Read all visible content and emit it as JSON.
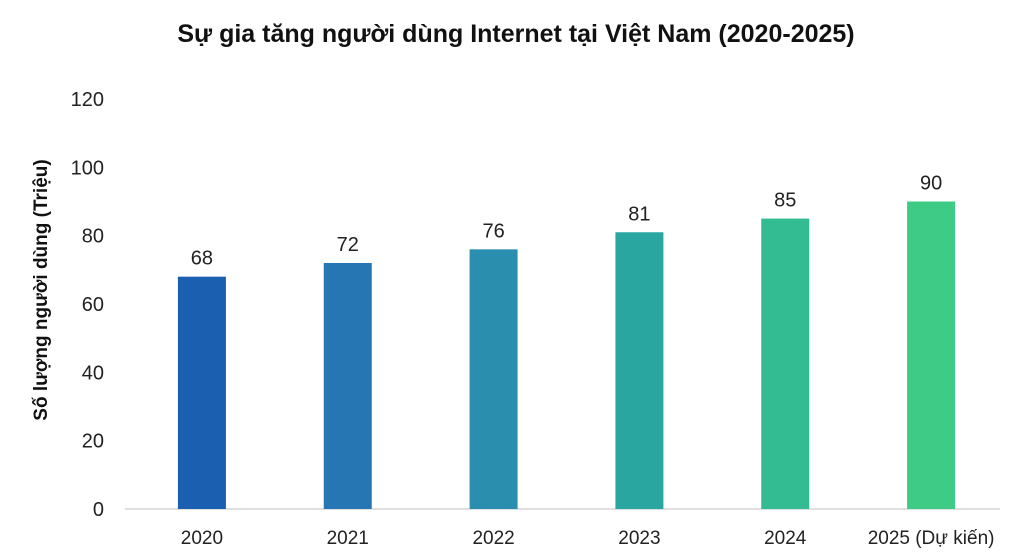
{
  "chart_data": {
    "type": "bar",
    "title": "Sự gia tăng người dùng Internet tại Việt Nam (2020-2025)",
    "xlabel": "",
    "ylabel": "Số lượng người dùng (Triệu)",
    "categories": [
      "2020",
      "2021",
      "2022",
      "2023",
      "2024",
      "2025 (Dự kiến)"
    ],
    "values": [
      68,
      72,
      76,
      81,
      85,
      90
    ],
    "data_labels": [
      "68",
      "72",
      "76",
      "81",
      "85",
      "90"
    ],
    "ylim": [
      0,
      120
    ],
    "yticks": [
      0,
      20,
      40,
      60,
      80,
      100,
      120
    ],
    "ytick_labels": [
      "0",
      "20",
      "40",
      "60",
      "80",
      "100",
      "120"
    ],
    "colors": [
      "#1a5fb0",
      "#2676b4",
      "#2a8fae",
      "#2aa6a0",
      "#33bb92",
      "#3ecb86"
    ],
    "grid": false,
    "legend": "none"
  }
}
